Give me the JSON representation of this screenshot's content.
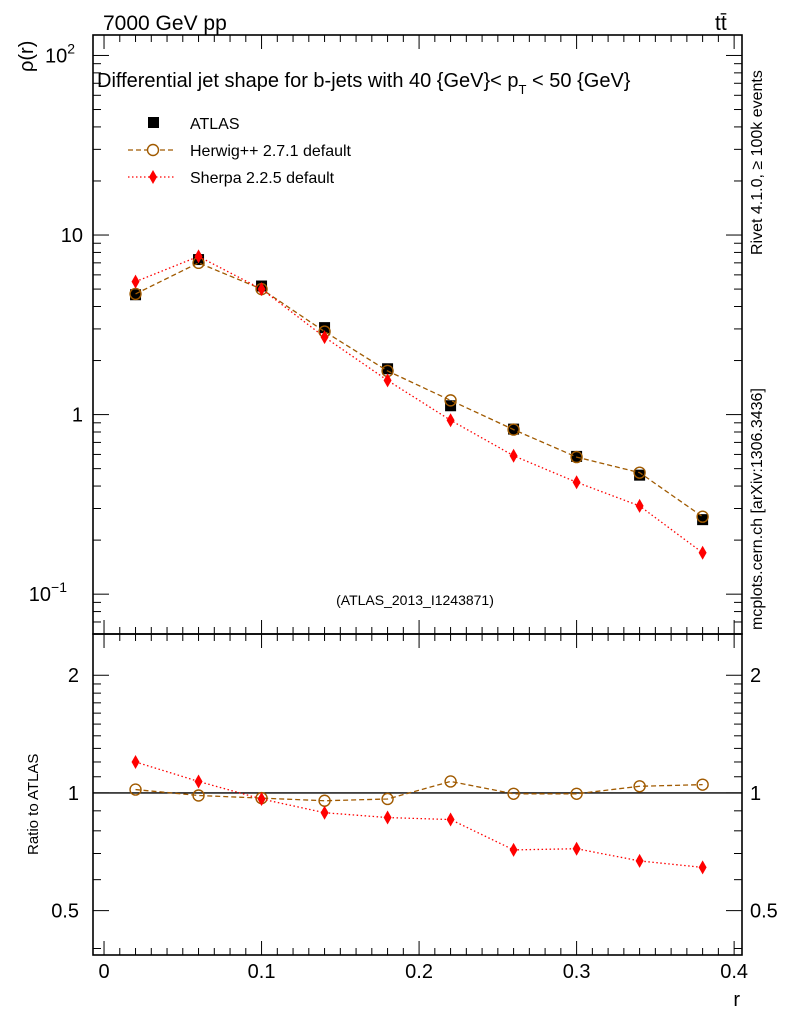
{
  "header": {
    "energy_label": "7000 GeV pp",
    "process_label": "tt̄"
  },
  "side_labels": {
    "rivet": "Rivet 4.1.0, ≥ 100k events",
    "mcplots": "mcplots.cern.ch [arXiv:1306.3436]"
  },
  "chart_data": [
    {
      "type": "scatter",
      "title": "Differential jet shape for b-jets with 40 {GeV}< p_T < 50 {GeV}",
      "title_parts": {
        "before": "Differential jet shape for b-jets with 40 {GeV}< p",
        "sub": "T",
        "after": " < 50 {GeV}"
      },
      "ylabel": "ρ(r)",
      "yscale": "log",
      "ylim": [
        0.06,
        130
      ],
      "xlim": [
        -0.007,
        0.405
      ],
      "analysis_id": "(ATLAS_2013_I1243871)",
      "y_ticks": [
        {
          "value": 0.1,
          "base": "10",
          "exp": "−1"
        },
        {
          "value": 1,
          "base": "1",
          "exp": ""
        },
        {
          "value": 10,
          "base": "10",
          "exp": ""
        },
        {
          "value": 100,
          "base": "10",
          "exp": "2"
        }
      ],
      "x": [
        0.02,
        0.06,
        0.1,
        0.14,
        0.18,
        0.22,
        0.26,
        0.3,
        0.34,
        0.38
      ],
      "series": [
        {
          "name": "ATLAS",
          "color": "#000000",
          "marker": "square",
          "values": [
            4.65,
            7.3,
            5.2,
            3.05,
            1.8,
            1.12,
            0.83,
            0.585,
            0.46,
            0.26
          ]
        },
        {
          "name": "Herwig++ 2.7.1 default",
          "color": "#a05a00",
          "marker": "open-circle",
          "line": "dashed",
          "values": [
            4.7,
            7.0,
            5.0,
            2.9,
            1.75,
            1.2,
            0.825,
            0.58,
            0.475,
            0.27
          ]
        },
        {
          "name": "Sherpa 2.2.5 default",
          "color": "#ff0000",
          "marker": "diamond",
          "line": "dotted",
          "values": [
            5.5,
            7.6,
            5.0,
            2.7,
            1.55,
            0.93,
            0.59,
            0.42,
            0.31,
            0.17
          ]
        }
      ]
    },
    {
      "type": "scatter",
      "ylabel": "Ratio to ATLAS",
      "xlabel": "r",
      "yscale": "log",
      "ylim": [
        0.385,
        2.55
      ],
      "xlim": [
        -0.007,
        0.405
      ],
      "reference_line": 1,
      "y_ticks": [
        0.5,
        1,
        2
      ],
      "y_tick_labels": [
        "0.5",
        "1",
        "2"
      ],
      "x_ticks": [
        0,
        0.1,
        0.2,
        0.3,
        0.4
      ],
      "x_tick_labels": [
        "0",
        "0.1",
        "0.2",
        "0.3",
        "0.4"
      ],
      "x": [
        0.02,
        0.06,
        0.1,
        0.14,
        0.18,
        0.22,
        0.26,
        0.3,
        0.34,
        0.38
      ],
      "series": [
        {
          "name": "Herwig++ 2.7.1 default",
          "color": "#a05a00",
          "marker": "open-circle",
          "line": "dashed",
          "values": [
            1.02,
            0.985,
            0.97,
            0.955,
            0.965,
            1.07,
            0.995,
            0.995,
            1.04,
            1.05
          ]
        },
        {
          "name": "Sherpa 2.2.5 default",
          "color": "#ff0000",
          "marker": "diamond",
          "line": "dotted",
          "values": [
            1.2,
            1.07,
            0.965,
            0.89,
            0.865,
            0.855,
            0.715,
            0.72,
            0.67,
            0.645
          ]
        }
      ]
    }
  ]
}
